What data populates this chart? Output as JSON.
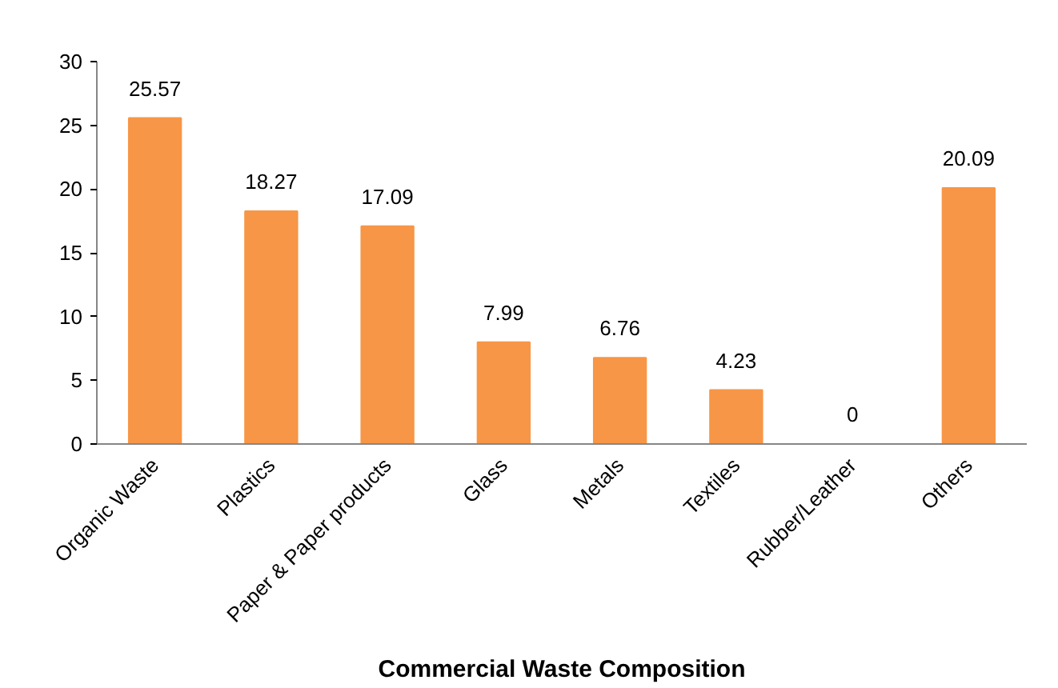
{
  "chart_data": {
    "type": "bar",
    "xlabel": "Commercial Waste Composition",
    "categories": [
      "Organic Waste",
      "Plastics",
      "Paper & Paper products",
      "Glass",
      "Metals",
      "Textiles",
      "Rubber/Leather",
      "Others"
    ],
    "values": [
      25.57,
      18.27,
      17.09,
      7.99,
      6.76,
      4.23,
      0,
      20.09
    ],
    "color": "#f79646",
    "ylim": [
      0,
      30
    ],
    "yticks": [
      0,
      5,
      10,
      15,
      20,
      25,
      30
    ],
    "data_labels": true,
    "grid": false
  }
}
